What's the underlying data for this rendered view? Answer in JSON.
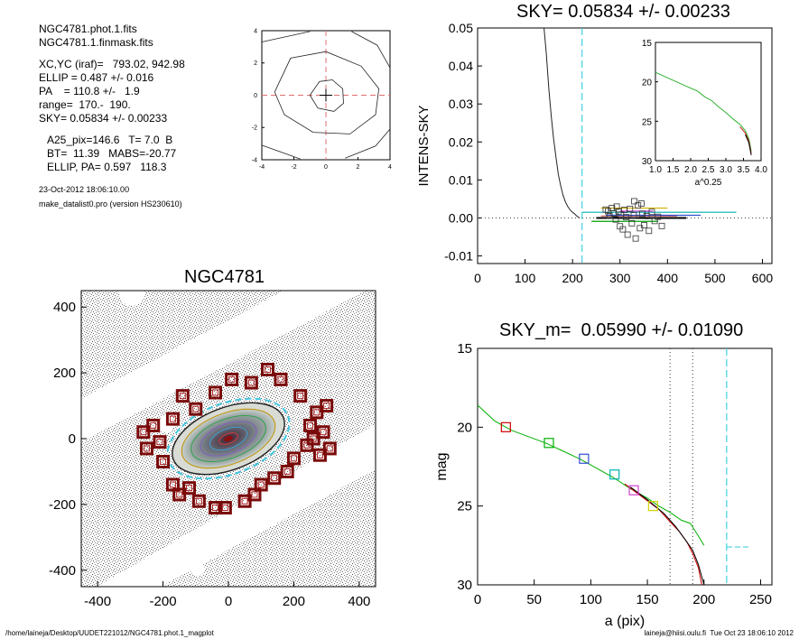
{
  "info": {
    "lines_a": [
      "NGC4781.phot.1.fits",
      "NGC4781.1.finmask.fits"
    ],
    "lines_b": [
      "XC,YC (iraf)=   793.02, 942.98",
      "ELLIP = 0.487 +/- 0.016",
      "PA    = 110.8 +/-   1.9",
      "range=  170.-  190.",
      "SKY= 0.05834 +/- 0.00233"
    ],
    "lines_c": [
      "A25_pix=146.6   T= 7.0  B",
      "BT=  11.39   MABS=-20.77",
      "ELLIP, PA= 0.597   118.3"
    ],
    "date": "23-Oct-2012 18:06:10.00",
    "program": "make_datalist0.pro (version HS230610)"
  },
  "footer": {
    "path": "/home/laineja/Desktop/UUDET221012/NGC4781.phot.1_magplot",
    "user": "laineja@hiisi.oulu.fi  Tue Oct 23 18:06:10 2012"
  },
  "chart_data": [
    {
      "id": "center-contour",
      "type": "contour",
      "xlim": [
        -4,
        4
      ],
      "ylim": [
        -4,
        4
      ],
      "xticks": [
        "-4",
        "-2",
        "0",
        "2",
        "4"
      ],
      "yticks": [
        "4",
        "2",
        "0",
        "-2",
        "-4"
      ],
      "contours": [
        [
          [
            -1,
            0
          ],
          [
            -0.4,
            0.85
          ],
          [
            0.4,
            0.95
          ],
          [
            1.05,
            0.4
          ],
          [
            1.1,
            -0.5
          ],
          [
            0.5,
            -1
          ],
          [
            -0.5,
            -0.8
          ],
          [
            -1,
            0
          ]
        ],
        [
          [
            -3.2,
            0.2
          ],
          [
            -2.2,
            2.3
          ],
          [
            0,
            2.7
          ],
          [
            2.2,
            1.8
          ],
          [
            3.3,
            0.4
          ],
          [
            3.1,
            -1.2
          ],
          [
            1.5,
            -2.4
          ],
          [
            -0.8,
            -2.3
          ],
          [
            -2.6,
            -1.2
          ],
          [
            -3.2,
            0.2
          ]
        ],
        [
          [
            -4,
            3.3
          ],
          [
            -1,
            3.95
          ]
        ],
        [
          [
            1.6,
            3.95
          ],
          [
            3.2,
            3.1
          ],
          [
            4,
            1.7
          ]
        ],
        [
          [
            -4,
            -3.1
          ],
          [
            -1.6,
            -3.95
          ]
        ],
        [
          [
            1.2,
            -3.9
          ],
          [
            3.1,
            -3.15
          ],
          [
            4,
            -2.1
          ]
        ]
      ],
      "crosshair": [
        0,
        0
      ]
    },
    {
      "id": "sky-plot",
      "type": "line",
      "title": "SKY= 0.05834 +/- 0.00233",
      "ylabel": "INTENS-SKY",
      "xlim": [
        0,
        620
      ],
      "ylim": [
        -0.012,
        0.05
      ],
      "xticks": [
        "0",
        "100",
        "200",
        "300",
        "400",
        "500",
        "600"
      ],
      "yticks": [
        "0.05",
        "0.04",
        "0.03",
        "0.02",
        "0.01",
        "0.00",
        "-0.01"
      ],
      "profile": {
        "x": [
          140,
          145,
          150,
          155,
          160,
          165,
          170,
          175,
          180,
          185,
          190,
          195,
          200,
          205,
          210,
          215
        ],
        "y": [
          0.05,
          0.043,
          0.034,
          0.027,
          0.021,
          0.016,
          0.0115,
          0.0085,
          0.006,
          0.0042,
          0.003,
          0.0021,
          0.0015,
          0.001,
          0.0004,
          0.0
        ]
      },
      "sky_line_x": 220,
      "sky_segments": [
        {
          "x": [
            220,
            545
          ],
          "y": 0.0015
        },
        {
          "x": [
            260,
            420
          ],
          "y": 0.0005
        },
        {
          "x": [
            250,
            440
          ],
          "y": 0.0
        },
        {
          "x": [
            270,
            470
          ],
          "y": 0.0007
        },
        {
          "x": [
            240,
            380
          ],
          "y": -0.0009
        },
        {
          "x": [
            300,
            370
          ],
          "y": 0.0018
        },
        {
          "x": [
            260,
            400
          ],
          "y": 0.0026
        }
      ],
      "squares": [
        {
          "x": 270,
          "y": 0.0022
        },
        {
          "x": 275,
          "y": 0.0018
        },
        {
          "x": 278,
          "y": 0.0006
        },
        {
          "x": 283,
          "y": 0.0026
        },
        {
          "x": 287,
          "y": 0.0012
        },
        {
          "x": 291,
          "y": -0.0004
        },
        {
          "x": 293,
          "y": 0.003
        },
        {
          "x": 297,
          "y": 0.0017
        },
        {
          "x": 300,
          "y": -0.0022
        },
        {
          "x": 302,
          "y": 0.0009
        },
        {
          "x": 306,
          "y": -0.003
        },
        {
          "x": 309,
          "y": 0.0021
        },
        {
          "x": 313,
          "y": 0.0002
        },
        {
          "x": 316,
          "y": -0.0044
        },
        {
          "x": 321,
          "y": 0.0024
        },
        {
          "x": 325,
          "y": -0.0014
        },
        {
          "x": 329,
          "y": 0.0007
        },
        {
          "x": 333,
          "y": -0.0054
        },
        {
          "x": 338,
          "y": 0.0033
        },
        {
          "x": 342,
          "y": -0.0027
        },
        {
          "x": 347,
          "y": 0.0011
        },
        {
          "x": 351,
          "y": -0.0019
        },
        {
          "x": 356,
          "y": 0.0005
        },
        {
          "x": 361,
          "y": -0.0034
        },
        {
          "x": 367,
          "y": 0.0016
        },
        {
          "x": 373,
          "y": -0.0008
        },
        {
          "x": 380,
          "y": 0.0003
        },
        {
          "x": 388,
          "y": -0.0021
        },
        {
          "x": 330,
          "y": 0.0044
        },
        {
          "x": 345,
          "y": 0.0038
        }
      ],
      "inset": {
        "xlabel": "a^0.25",
        "xlim": [
          1.0,
          4.0
        ],
        "ylim": [
          15,
          30
        ],
        "reversed_y": true,
        "xticks": [
          "1.0",
          "1.5",
          "2.0",
          "2.5",
          "3.0",
          "3.5",
          "4.0"
        ],
        "yticks": [
          "15",
          "20",
          "25",
          "30"
        ],
        "profile": {
          "x": [
            1.0,
            1.3,
            1.6,
            1.9,
            2.2,
            2.4,
            2.6,
            2.8,
            3.0,
            3.2,
            3.4,
            3.55,
            3.65,
            3.72
          ],
          "y": [
            18.8,
            19.4,
            20.0,
            20.6,
            21.2,
            21.9,
            22.4,
            23.2,
            23.9,
            24.7,
            25.4,
            26.2,
            27.2,
            28.8
          ]
        }
      }
    },
    {
      "id": "galaxy-image",
      "type": "image",
      "title": "NGC4781",
      "xlim": [
        -450,
        450
      ],
      "ylim": [
        -450,
        450
      ],
      "xticks": [
        "-400",
        "-200",
        "0",
        "200",
        "400"
      ],
      "yticks": [
        "400",
        "200",
        "0",
        "-200",
        "-400"
      ],
      "galaxy": {
        "center": [
          0,
          0
        ],
        "pa_deg": 20.8,
        "semi_axes": [
          [
            195,
            108
          ],
          [
            180,
            95
          ],
          [
            150,
            78
          ],
          [
            120,
            60
          ],
          [
            90,
            45
          ],
          [
            60,
            30
          ],
          [
            30,
            15
          ]
        ]
      },
      "marker_boxes": [
        {
          "x": -260,
          "y": 20
        },
        {
          "x": -250,
          "y": -30
        },
        {
          "x": -230,
          "y": 40
        },
        {
          "x": -210,
          "y": -10
        },
        {
          "x": -200,
          "y": -70
        },
        {
          "x": -170,
          "y": 60
        },
        {
          "x": -170,
          "y": -140
        },
        {
          "x": -150,
          "y": -170
        },
        {
          "x": -140,
          "y": 130
        },
        {
          "x": -120,
          "y": -150
        },
        {
          "x": -100,
          "y": 90
        },
        {
          "x": -90,
          "y": -190
        },
        {
          "x": -40,
          "y": 140
        },
        {
          "x": -40,
          "y": -210
        },
        {
          "x": -10,
          "y": -210
        },
        {
          "x": 10,
          "y": 180
        },
        {
          "x": 50,
          "y": -190
        },
        {
          "x": 70,
          "y": 170
        },
        {
          "x": 80,
          "y": -170
        },
        {
          "x": 100,
          "y": -140
        },
        {
          "x": 120,
          "y": 210
        },
        {
          "x": 140,
          "y": -120
        },
        {
          "x": 160,
          "y": 180
        },
        {
          "x": 180,
          "y": -100
        },
        {
          "x": 200,
          "y": -60
        },
        {
          "x": 220,
          "y": 130
        },
        {
          "x": 240,
          "y": -20
        },
        {
          "x": 250,
          "y": 40
        },
        {
          "x": 260,
          "y": 0
        },
        {
          "x": 270,
          "y": 80
        },
        {
          "x": 280,
          "y": -50
        },
        {
          "x": 290,
          "y": 20
        },
        {
          "x": 300,
          "y": 100
        },
        {
          "x": 310,
          "y": -30
        }
      ]
    },
    {
      "id": "mag-profile",
      "type": "line",
      "title": "SKY_m=  0.05990 +/- 0.01090",
      "xlabel": "a (pix)",
      "ylabel": "mag",
      "xlim": [
        0,
        260
      ],
      "ylim": [
        15,
        30
      ],
      "reversed_y": true,
      "xticks": [
        "0",
        "50",
        "100",
        "150",
        "200",
        "250"
      ],
      "yticks": [
        "15",
        "20",
        "25",
        "30"
      ],
      "vlines_dotted": [
        170,
        190
      ],
      "sky_line_x": 220,
      "sky_hline": {
        "x": [
          220,
          240
        ],
        "y": 27.6
      },
      "series": [
        {
          "color": "#00b000",
          "x": [
            0,
            15,
            30,
            45,
            60,
            75,
            90,
            105,
            120,
            135,
            150,
            160,
            170,
            180,
            188,
            195,
            200
          ],
          "y": [
            18.6,
            19.6,
            20.2,
            20.6,
            21.0,
            21.5,
            22.0,
            22.6,
            23.2,
            23.9,
            24.5,
            25.0,
            25.4,
            25.9,
            26.1,
            26.9,
            27.5
          ]
        },
        {
          "color": "#d00000",
          "x": [
            130,
            145,
            160,
            170,
            178,
            185,
            190,
            195,
            198
          ],
          "y": [
            23.6,
            24.4,
            25.2,
            26.0,
            26.6,
            27.3,
            28.0,
            28.9,
            30.0
          ]
        },
        {
          "color": "#000000",
          "x": [
            135,
            150,
            165,
            175,
            183,
            190,
            195,
            200
          ],
          "y": [
            23.8,
            24.6,
            25.5,
            26.3,
            27.1,
            27.8,
            28.7,
            30.0
          ]
        }
      ],
      "markers": [
        {
          "x": 25,
          "y": 20.0,
          "color": "#d00000"
        },
        {
          "x": 63,
          "y": 21.0,
          "color": "#00b000"
        },
        {
          "x": 94,
          "y": 22.0,
          "color": "#3050d0"
        },
        {
          "x": 121,
          "y": 23.0,
          "color": "#00b0b0"
        },
        {
          "x": 138,
          "y": 24.0,
          "color": "#d040d0"
        },
        {
          "x": 155,
          "y": 25.0,
          "color": "#d0d000"
        }
      ]
    }
  ]
}
